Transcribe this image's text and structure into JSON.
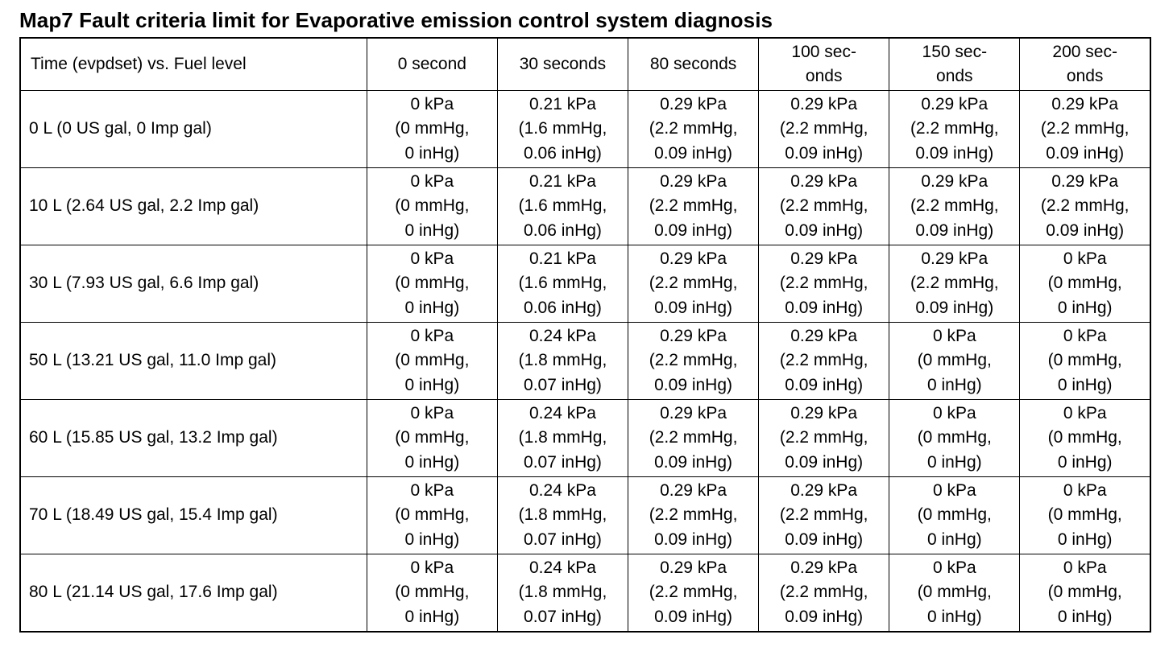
{
  "title": "Map7 Fault criteria limit for Evaporative emission control system diagnosis",
  "table": {
    "corner_header": "Time (evpdset) vs. Fuel level",
    "column_headers": [
      [
        "0 second"
      ],
      [
        "30 seconds"
      ],
      [
        "80 seconds"
      ],
      [
        "100 sec-",
        "onds"
      ],
      [
        "150 sec-",
        "onds"
      ],
      [
        "200 sec-",
        "onds"
      ]
    ],
    "rows": [
      {
        "label": "0 L (0 US gal, 0 Imp gal)",
        "cells": [
          [
            "0 kPa",
            "(0 mmHg,",
            "0 inHg)"
          ],
          [
            "0.21 kPa",
            "(1.6 mmHg,",
            "0.06 inHg)"
          ],
          [
            "0.29 kPa",
            "(2.2 mmHg,",
            "0.09 inHg)"
          ],
          [
            "0.29 kPa",
            "(2.2 mmHg,",
            "0.09 inHg)"
          ],
          [
            "0.29 kPa",
            "(2.2 mmHg,",
            "0.09 inHg)"
          ],
          [
            "0.29 kPa",
            "(2.2 mmHg,",
            "0.09 inHg)"
          ]
        ]
      },
      {
        "label": "10 L (2.64 US gal, 2.2 Imp gal)",
        "cells": [
          [
            "0 kPa",
            "(0 mmHg,",
            "0 inHg)"
          ],
          [
            "0.21 kPa",
            "(1.6 mmHg,",
            "0.06 inHg)"
          ],
          [
            "0.29 kPa",
            "(2.2 mmHg,",
            "0.09 inHg)"
          ],
          [
            "0.29 kPa",
            "(2.2 mmHg,",
            "0.09 inHg)"
          ],
          [
            "0.29 kPa",
            "(2.2 mmHg,",
            "0.09 inHg)"
          ],
          [
            "0.29 kPa",
            "(2.2 mmHg,",
            "0.09 inHg)"
          ]
        ]
      },
      {
        "label": "30 L (7.93 US gal, 6.6 Imp gal)",
        "cells": [
          [
            "0 kPa",
            "(0 mmHg,",
            "0 inHg)"
          ],
          [
            "0.21 kPa",
            "(1.6 mmHg,",
            "0.06 inHg)"
          ],
          [
            "0.29 kPa",
            "(2.2 mmHg,",
            "0.09 inHg)"
          ],
          [
            "0.29 kPa",
            "(2.2 mmHg,",
            "0.09 inHg)"
          ],
          [
            "0.29 kPa",
            "(2.2 mmHg,",
            "0.09 inHg)"
          ],
          [
            "0 kPa",
            "(0 mmHg,",
            "0 inHg)"
          ]
        ]
      },
      {
        "label": "50 L (13.21 US gal, 11.0 Imp gal)",
        "cells": [
          [
            "0 kPa",
            "(0 mmHg,",
            "0 inHg)"
          ],
          [
            "0.24 kPa",
            "(1.8 mmHg,",
            "0.07 inHg)"
          ],
          [
            "0.29 kPa",
            "(2.2 mmHg,",
            "0.09 inHg)"
          ],
          [
            "0.29 kPa",
            "(2.2 mmHg,",
            "0.09 inHg)"
          ],
          [
            "0 kPa",
            "(0 mmHg,",
            "0 inHg)"
          ],
          [
            "0 kPa",
            "(0 mmHg,",
            "0 inHg)"
          ]
        ]
      },
      {
        "label": "60 L (15.85 US gal, 13.2 Imp gal)",
        "cells": [
          [
            "0 kPa",
            "(0 mmHg,",
            "0 inHg)"
          ],
          [
            "0.24 kPa",
            "(1.8 mmHg,",
            "0.07 inHg)"
          ],
          [
            "0.29 kPa",
            "(2.2 mmHg,",
            "0.09 inHg)"
          ],
          [
            "0.29 kPa",
            "(2.2 mmHg,",
            "0.09 inHg)"
          ],
          [
            "0 kPa",
            "(0 mmHg,",
            "0 inHg)"
          ],
          [
            "0 kPa",
            "(0 mmHg,",
            "0 inHg)"
          ]
        ]
      },
      {
        "label": "70 L (18.49 US gal, 15.4 Imp gal)",
        "cells": [
          [
            "0 kPa",
            "(0 mmHg,",
            "0 inHg)"
          ],
          [
            "0.24 kPa",
            "(1.8 mmHg,",
            "0.07 inHg)"
          ],
          [
            "0.29 kPa",
            "(2.2 mmHg,",
            "0.09 inHg)"
          ],
          [
            "0.29 kPa",
            "(2.2 mmHg,",
            "0.09 inHg)"
          ],
          [
            "0 kPa",
            "(0 mmHg,",
            "0 inHg)"
          ],
          [
            "0 kPa",
            "(0 mmHg,",
            "0 inHg)"
          ]
        ]
      },
      {
        "label": "80 L (21.14 US gal, 17.6 Imp gal)",
        "cells": [
          [
            "0 kPa",
            "(0 mmHg,",
            "0 inHg)"
          ],
          [
            "0.24 kPa",
            "(1.8 mmHg,",
            "0.07 inHg)"
          ],
          [
            "0.29 kPa",
            "(2.2 mmHg,",
            "0.09 inHg)"
          ],
          [
            "0.29 kPa",
            "(2.2 mmHg,",
            "0.09 inHg)"
          ],
          [
            "0 kPa",
            "(0 mmHg,",
            "0 inHg)"
          ],
          [
            "0 kPa",
            "(0 mmHg,",
            "0 inHg)"
          ]
        ]
      }
    ]
  }
}
